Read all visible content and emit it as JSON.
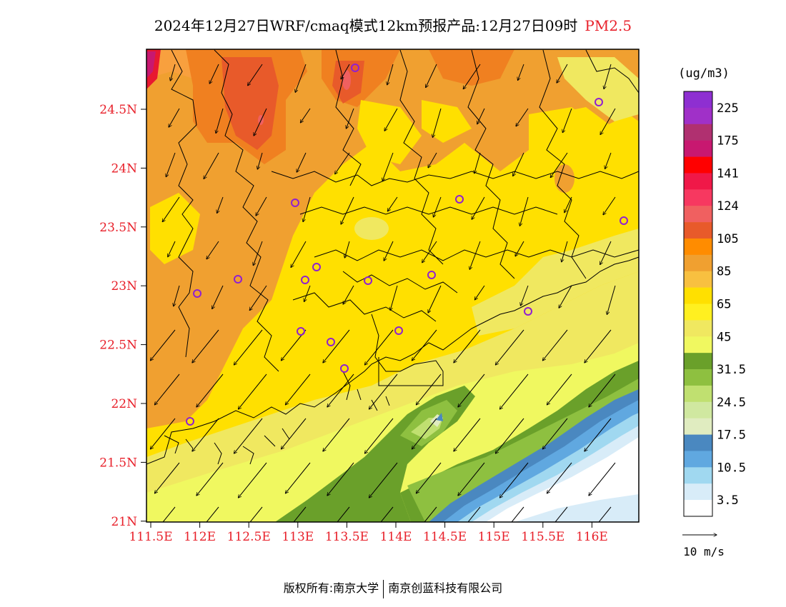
{
  "title": {
    "main": "2024年12月27日WRF/cmaq模式12km预报产品:12月27日09时",
    "pollutant": "PM2.5"
  },
  "axes": {
    "lat_ticks": [
      "24.5N",
      "24N",
      "23.5N",
      "23N",
      "22.5N",
      "22N",
      "21.5N",
      "21N"
    ],
    "lon_ticks": [
      "111.5E",
      "112E",
      "112.5E",
      "113E",
      "113.5E",
      "114E",
      "114.5E",
      "115E",
      "115.5E",
      "116E"
    ],
    "tick_color": "#e8202a"
  },
  "legend": {
    "unit": "(ug/m3)",
    "steps": [
      {
        "color": "#8e2fd1",
        "label": "225"
      },
      {
        "color": "#a030c8",
        "label": ""
      },
      {
        "color": "#b03070",
        "label": "175"
      },
      {
        "color": "#c81870",
        "label": ""
      },
      {
        "color": "#ff0000",
        "label": "141"
      },
      {
        "color": "#f01848",
        "label": ""
      },
      {
        "color": "#f73860",
        "label": "124"
      },
      {
        "color": "#f06060",
        "label": ""
      },
      {
        "color": "#e85a2a",
        "label": "105"
      },
      {
        "color": "#ff8c00",
        "label": ""
      },
      {
        "color": "#f0a030",
        "label": "85"
      },
      {
        "color": "#f8c040",
        "label": ""
      },
      {
        "color": "#ffe000",
        "label": "65"
      },
      {
        "color": "#fff020",
        "label": ""
      },
      {
        "color": "#f0e860",
        "label": "45"
      },
      {
        "color": "#f0f860",
        "label": ""
      },
      {
        "color": "#6aa02a",
        "label": "31.5"
      },
      {
        "color": "#8ec040",
        "label": ""
      },
      {
        "color": "#c0e070",
        "label": "24.5"
      },
      {
        "color": "#d0e8a0",
        "label": ""
      },
      {
        "color": "#e0ecc0",
        "label": "17.5"
      },
      {
        "color": "#4a88c0",
        "label": ""
      },
      {
        "color": "#60a8e0",
        "label": "10.5"
      },
      {
        "color": "#a0d8f0",
        "label": ""
      },
      {
        "color": "#d8ecf8",
        "label": "3.5"
      },
      {
        "color": "#ffffff",
        "label": ""
      }
    ]
  },
  "wind_reference": {
    "label": "10 m/s"
  },
  "footer": {
    "copyright": "版权所有:南京大学",
    "company": "南京创蓝科技有限公司"
  },
  "colors": {
    "station_marker": "#9020d0",
    "boundary": "#000000"
  }
}
